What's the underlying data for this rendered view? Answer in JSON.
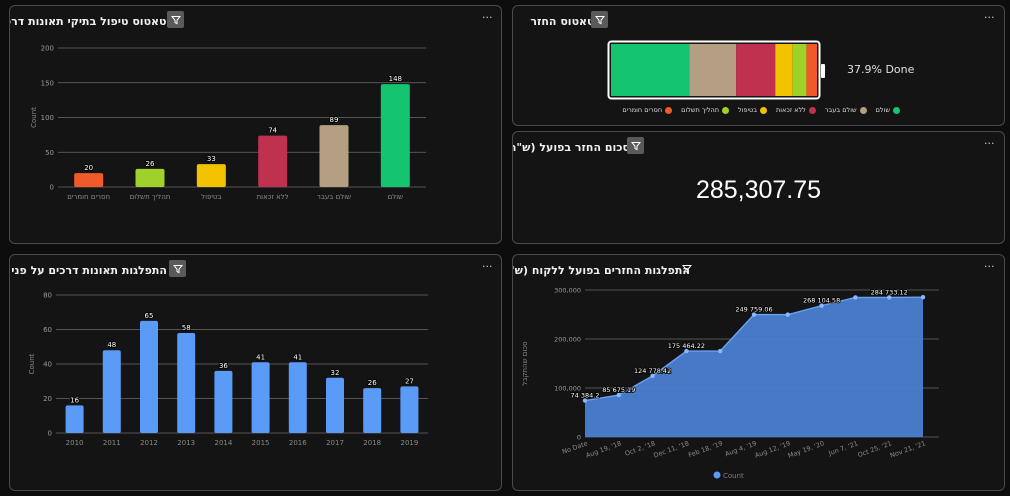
{
  "panels": {
    "status_handling": {
      "title": "סטאטוס טיפול בתיקי תאונות דרכים",
      "menu": "···",
      "chart_data": {
        "type": "bar",
        "title": "סטאטוס טיפול בתיקי תאונות דרכים",
        "ylabel": "Count",
        "ylim": [
          0,
          200
        ],
        "yticks": [
          0,
          50,
          100,
          150,
          200
        ],
        "categories": [
          "חסרים חומרים",
          "תהליך תשלום",
          "בטיפול",
          "ללא זכאות",
          "שולם בעבר",
          "שולם"
        ],
        "values": [
          20,
          26,
          33,
          74,
          89,
          148
        ],
        "colors": [
          "#f05a28",
          "#a0d12a",
          "#f2c100",
          "#c0304f",
          "#b59f82",
          "#14c46f"
        ]
      }
    },
    "refund_status": {
      "title": "סטאטוס החזר",
      "menu": "···",
      "done_label": "37.9% Done",
      "chart_data": {
        "type": "bar",
        "categories": [
          "שולם",
          "שולם בעבר",
          "ללא זכאות",
          "בטיפול",
          "תהליך תשלום",
          "חסרים חומרים"
        ],
        "values": [
          148,
          89,
          74,
          33,
          26,
          20
        ],
        "colors": [
          "#14c46f",
          "#b59f82",
          "#c0304f",
          "#f2c100",
          "#a0d12a",
          "#f05a28"
        ]
      }
    },
    "refund_sum": {
      "title": "סכום החזר בפועל (ש\"ח)",
      "menu": "···",
      "value": "285,307.75"
    },
    "accidents_over_time": {
      "title": "התפלגות תאונות דרכים על פני הזמן",
      "menu": "···",
      "chart_data": {
        "type": "bar",
        "ylabel": "Count",
        "ylim": [
          0,
          80
        ],
        "yticks": [
          0,
          20,
          40,
          60,
          80
        ],
        "categories": [
          "2010",
          "2011",
          "2012",
          "2013",
          "2014",
          "2015",
          "2016",
          "2017",
          "2018",
          "2019"
        ],
        "values": [
          16,
          48,
          65,
          58,
          36,
          41,
          41,
          32,
          26,
          27
        ],
        "color": "#5b9bf8"
      }
    },
    "refunds_per_client": {
      "title": "התפלגות החזרים בפועל ללקוח (ש\"ח)",
      "menu": "···",
      "chart_data": {
        "type": "area",
        "ylabel": "סכום שהתקבל",
        "ylim": [
          0,
          300000
        ],
        "yticks": [
          "0",
          "100,000",
          "200,000",
          "300,000"
        ],
        "ytick_values": [
          0,
          100000,
          200000,
          300000
        ],
        "x": [
          "No Date",
          "Aug 19, '18",
          "Oct 2, '18",
          "Dec 11, '18",
          "Feb 18, '19",
          "Aug 4, '19",
          "Aug 12, '19",
          "May 19, '20",
          "Jun 7, '21",
          "Oct 25, '21",
          "Nov 21, '21"
        ],
        "values": [
          74384.2,
          85675.19,
          124778.42,
          175464.22,
          175464.22,
          249759.06,
          249759.06,
          268104.58,
          284733.12,
          284733.12,
          285307.75
        ],
        "labels": [
          "74 384.2",
          "85 675.19",
          "124 778.42",
          "175 464.22",
          "",
          "249 759.06",
          "",
          "268 104.58",
          "",
          "284 733.12",
          ""
        ],
        "legend": "Count",
        "color": "#4a7fd0"
      }
    }
  }
}
